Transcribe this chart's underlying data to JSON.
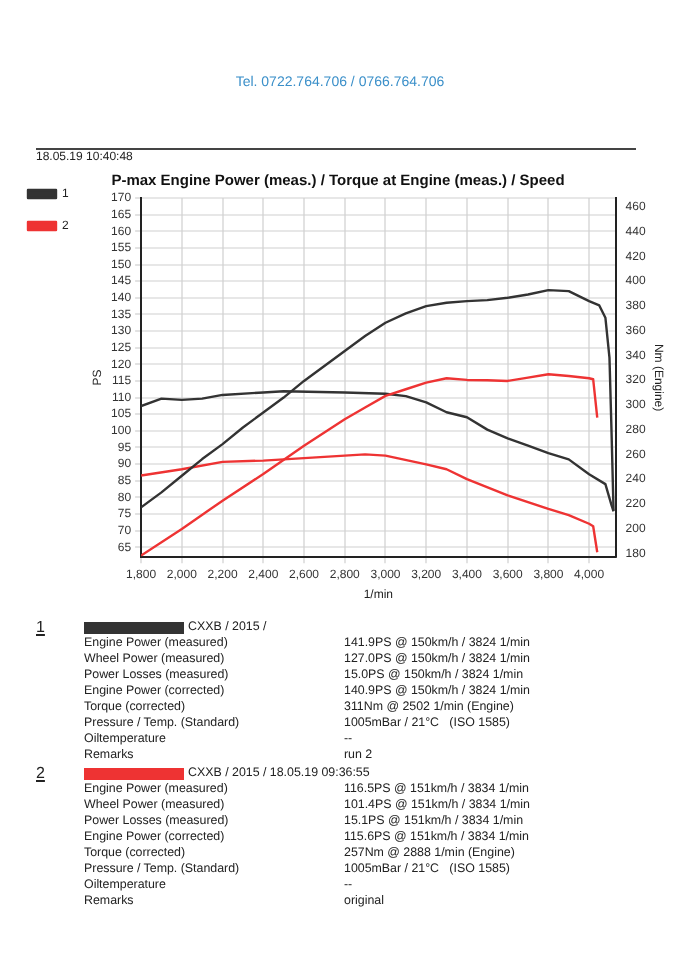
{
  "chart_data": {
    "type": "line",
    "title": "P-max Engine Power (meas.) / Torque at Engine (meas.) / Speed",
    "xlabel": "1/min",
    "ylabel": "PS",
    "y2label": "Nm (Engine)",
    "annotations": [
      "Tel. 0722.764.706 / 0766.764.706",
      "18.05.19 10:40:48",
      "1",
      "CXXB / 2015 /",
      "Engine Power (measured)",
      "141.9PS @ 150km/h / 3824 1/min",
      "Wheel Power (measured)",
      "127.0PS @ 150km/h / 3824 1/min",
      "Power Losses (measured)",
      "15.0PS @ 150km/h / 3824 1/min",
      "Engine Power (corrected)",
      "140.9PS @ 150km/h / 3824 1/min",
      "Torque (corrected)",
      "311Nm @ 2502 1/min (Engine)",
      "Pressure / Temp. (Standard)",
      "1005mBar / 21°C   (ISO 1585)",
      "Oiltemperature",
      "--",
      "Remarks",
      "run 2",
      "2",
      "CXXB / 2015 / 18.05.19 09:36:55",
      "Engine Power (measured)",
      "116.5PS @ 151km/h / 3834 1/min",
      "Wheel Power (measured)",
      "101.4PS @ 151km/h / 3834 1/min",
      "Power Losses (measured)",
      "15.1PS @ 151km/h / 3834 1/min",
      "Engine Power (corrected)",
      "115.6PS @ 151km/h / 3834 1/min",
      "Torque (corrected)",
      "257Nm @ 2888 1/min (Engine)",
      "Pressure / Temp. (Standard)",
      "1005mBar / 21°C   (ISO 1585)",
      "Oiltemperature",
      "--",
      "Remarks",
      "original"
    ],
    "series": [
      {
        "name": "1",
        "color": "#333333",
        "x": [
          1800,
          1900,
          2000,
          2100,
          2200,
          2300,
          2400,
          2500,
          2600,
          2700,
          2800,
          2900,
          3000,
          3100,
          3200,
          3300,
          3400,
          3500,
          3600,
          3700,
          3800,
          3900,
          4000,
          4050,
          4080,
          4100,
          4110,
          4120
        ],
        "values": [
          77,
          81.5,
          86.5,
          91.5,
          96,
          101,
          105.5,
          110,
          115,
          119.5,
          124,
          128.5,
          132.5,
          135.3,
          137.5,
          138.5,
          139,
          139.3,
          140,
          141,
          142.3,
          142,
          139,
          137.7,
          134,
          122,
          100,
          76
        ]
      },
      {
        "name": "2",
        "color": "#ee3333",
        "x": [
          1800,
          2000,
          2200,
          2400,
          2600,
          2800,
          2900,
          3000,
          3100,
          3200,
          3300,
          3400,
          3500,
          3600,
          3700,
          3800,
          3900,
          4000,
          4020,
          4040
        ],
        "values": [
          62.5,
          70.5,
          79,
          87,
          95.5,
          103.5,
          107,
          110.5,
          112.5,
          114.5,
          115.8,
          115.3,
          115.2,
          115,
          116,
          117,
          116.5,
          115.8,
          115.5,
          104
        ]
      },
      {
        "color": "#333333",
        "axis": "y2",
        "x": [
          1800,
          1900,
          2000,
          2100,
          2200,
          2400,
          2500,
          2800,
          3000,
          3100,
          3200,
          3300,
          3400,
          3500,
          3600,
          3700,
          3800,
          3900,
          4000,
          4080,
          4110,
          4120
        ],
        "values": [
          299,
          305,
          304,
          305,
          308,
          310,
          311,
          310,
          309,
          307,
          302,
          294,
          290,
          280,
          273,
          267,
          261,
          256,
          244,
          236,
          219,
          214
        ]
      },
      {
        "color": "#ee3333",
        "axis": "y2",
        "x": [
          1800,
          2000,
          2200,
          2400,
          2600,
          2800,
          2900,
          3000,
          3200,
          3300,
          3400,
          3600,
          3800,
          3900,
          4000,
          4020,
          4040
        ],
        "values": [
          243,
          248,
          254,
          255,
          257,
          259,
          260,
          259,
          252,
          248,
          240,
          227,
          216,
          211,
          204,
          202,
          181
        ]
      }
    ],
    "xlim": [
      1800,
      4130
    ],
    "xticks": [
      {
        "value": 1800,
        "label": "1,800"
      },
      {
        "value": 2000,
        "label": "2,000"
      },
      {
        "value": 2200,
        "label": "2,200"
      },
      {
        "value": 2400,
        "label": "2,400"
      },
      {
        "value": 2600,
        "label": "2,600"
      },
      {
        "value": 2800,
        "label": "2,800"
      },
      {
        "value": 3000,
        "label": "3,000"
      },
      {
        "value": 3200,
        "label": "3,200"
      },
      {
        "value": 3400,
        "label": "3,400"
      },
      {
        "value": 3600,
        "label": "3,600"
      },
      {
        "value": 3800,
        "label": "3,800"
      },
      {
        "value": 4000,
        "label": "4,000"
      }
    ],
    "ylim": [
      62,
      170
    ],
    "yticks": [
      65,
      70,
      75,
      80,
      85,
      90,
      95,
      100,
      105,
      110,
      115,
      120,
      125,
      130,
      135,
      140,
      145,
      150,
      155,
      160,
      165,
      170
    ],
    "y2lim": [
      177,
      467
    ],
    "y2ticks": [
      180,
      200,
      220,
      240,
      260,
      280,
      300,
      320,
      340,
      360,
      380,
      400,
      420,
      440,
      460
    ],
    "grid": true,
    "legend": "top left",
    "marker": "none"
  }
}
